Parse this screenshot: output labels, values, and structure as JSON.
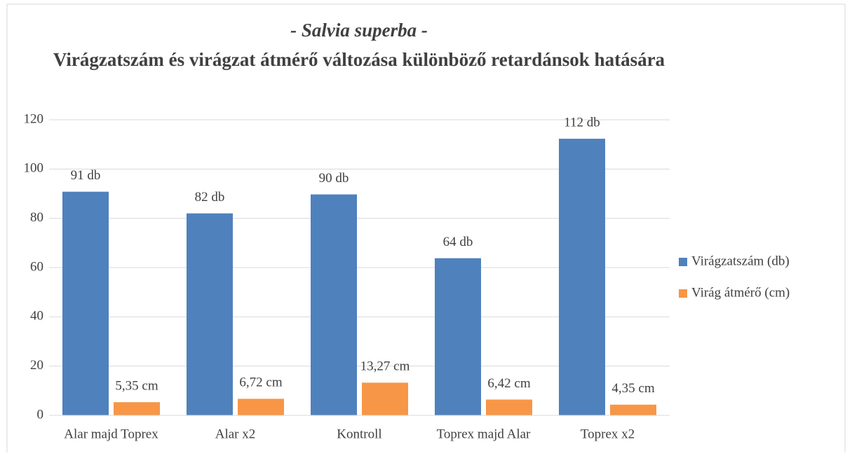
{
  "chart_data": {
    "type": "bar",
    "title": "- Salvia superba -",
    "subtitle": "Virágzatszám és virágzat átmérő változása különböző retardánsok hatására",
    "categories": [
      "Alar majd Toprex",
      "Alar x2",
      "Kontroll",
      "Toprex majd Alar",
      "Toprex x2"
    ],
    "series": [
      {
        "name": "Virágzatszám (db)",
        "color": "#4f81bd",
        "values": [
          90.8,
          82.0,
          89.7,
          63.8,
          112.3
        ],
        "value_labels": [
          "91 db",
          "82 db",
          "90 db",
          "64 db",
          "112 db"
        ]
      },
      {
        "name": "Virág átmérő (cm)",
        "color": "#f79646",
        "values": [
          5.35,
          6.72,
          13.27,
          6.42,
          4.35
        ],
        "value_labels": [
          "5,35 cm",
          "6,72 cm",
          "13,27 cm",
          "6,42 cm",
          "4,35 cm"
        ]
      }
    ],
    "ylim": [
      0,
      120
    ],
    "yticks": [
      0,
      20,
      40,
      60,
      80,
      100,
      120
    ],
    "grid": true,
    "legend": "right"
  }
}
